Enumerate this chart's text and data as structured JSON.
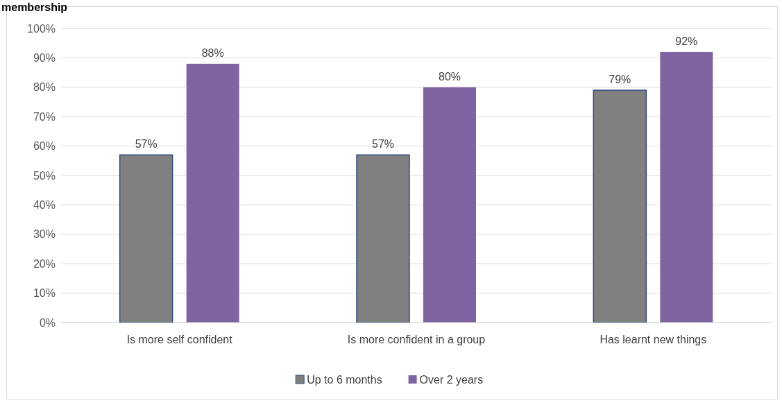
{
  "chart_data": {
    "type": "bar",
    "title": "membership",
    "categories": [
      "Is more self confident",
      "Is more confident in a group",
      "Has learnt new things"
    ],
    "series": [
      {
        "name": "Up to 6 months",
        "color": "#808080",
        "values": [
          57,
          57,
          79
        ]
      },
      {
        "name": "Over 2 years",
        "color": "#8064a2",
        "values": [
          88,
          80,
          92
        ]
      }
    ],
    "ylim": [
      0,
      100
    ],
    "yticks": [
      {
        "value": 0,
        "label": "0%"
      },
      {
        "value": 10,
        "label": "10%"
      },
      {
        "value": 20,
        "label": "20%"
      },
      {
        "value": 30,
        "label": "30%"
      },
      {
        "value": 40,
        "label": "40%"
      },
      {
        "value": 50,
        "label": "50%"
      },
      {
        "value": 60,
        "label": "60%"
      },
      {
        "value": 70,
        "label": "70%"
      },
      {
        "value": 80,
        "label": "80%"
      },
      {
        "value": 90,
        "label": "90%"
      },
      {
        "value": 100,
        "label": "100%"
      }
    ],
    "value_labels": [
      [
        "57%",
        "57%",
        "79%"
      ],
      [
        "88%",
        "80%",
        "92%"
      ]
    ],
    "grid": "y",
    "legend": "bottom"
  }
}
